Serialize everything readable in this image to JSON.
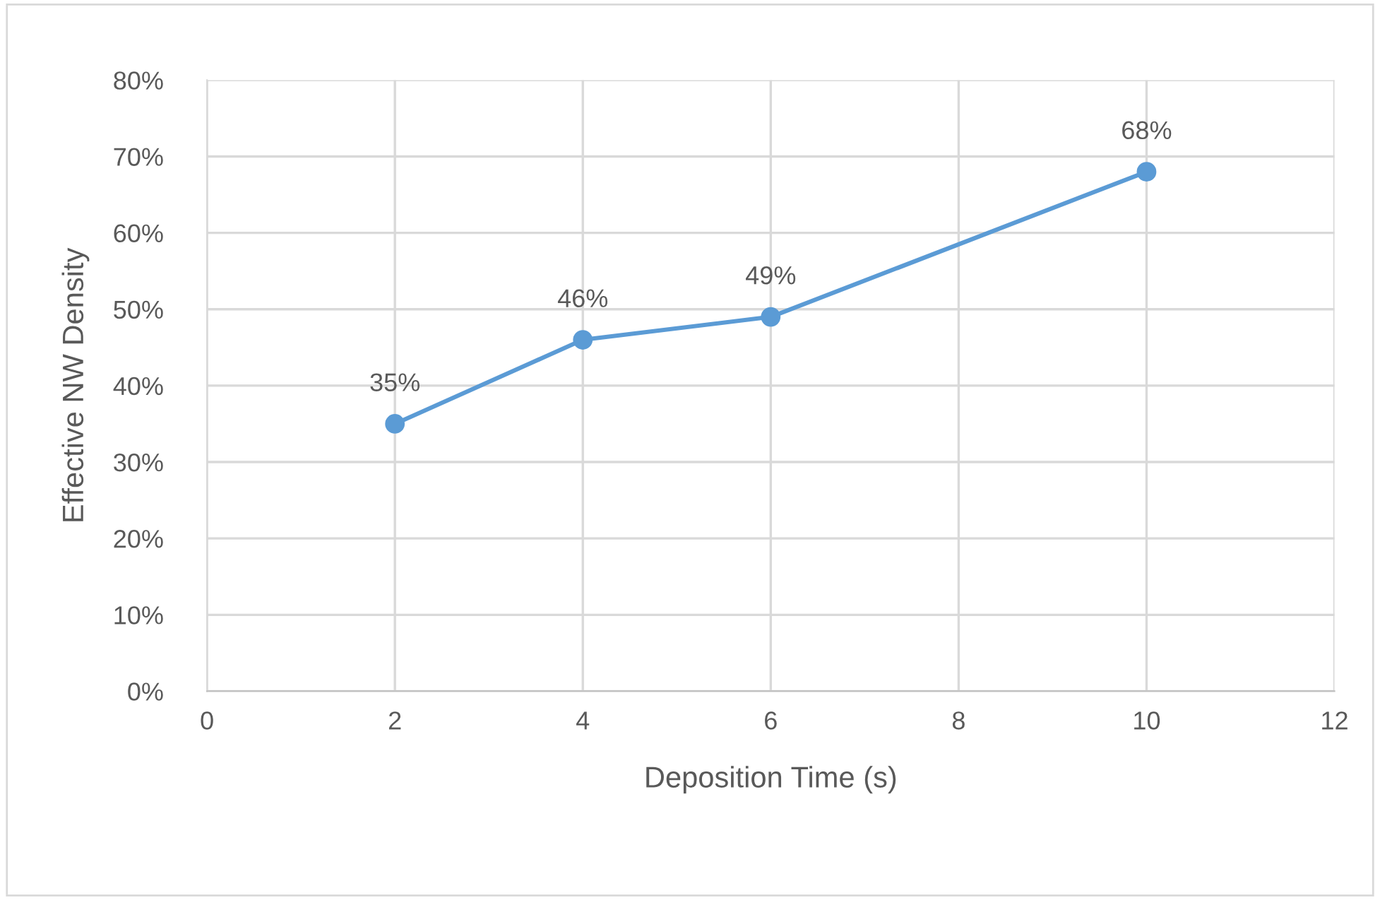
{
  "chart_data": {
    "type": "line",
    "xlabel": "Deposition Time (s)",
    "ylabel": "Effective NW Density",
    "x": [
      2,
      4,
      6,
      10
    ],
    "series": [
      {
        "color": "#5b9bd5",
        "values": [
          35,
          46,
          49,
          68
        ]
      }
    ],
    "value_labels": [
      "35%",
      "46%",
      "49%",
      "68%"
    ],
    "xlim": [
      0,
      12
    ],
    "xticks": [
      0,
      2,
      4,
      6,
      8,
      10,
      12
    ],
    "ylim": [
      0,
      80
    ],
    "yticks": [
      {
        "value": 0,
        "label": "0%"
      },
      {
        "value": 10,
        "label": "10%"
      },
      {
        "value": 20,
        "label": "20%"
      },
      {
        "value": 30,
        "label": "30%"
      },
      {
        "value": 40,
        "label": "40%"
      },
      {
        "value": 50,
        "label": "50%"
      },
      {
        "value": 60,
        "label": "60%"
      },
      {
        "value": 70,
        "label": "70%"
      },
      {
        "value": 80,
        "label": "80%"
      }
    ],
    "grid": true,
    "marker": "circle",
    "line_style": "solid",
    "legend": false
  }
}
